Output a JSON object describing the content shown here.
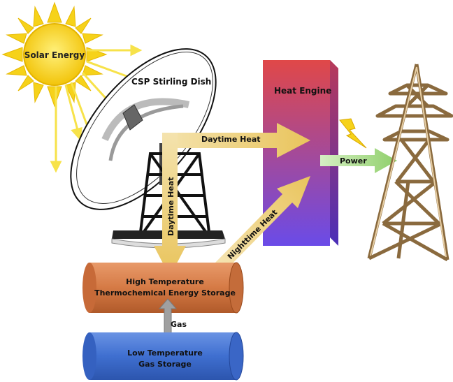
{
  "labels": {
    "solar_energy": "Solar Energy",
    "csp_dish": "CSP Stirling Dish",
    "heat_engine": "Heat Engine",
    "daytime_heat_horizontal": "Daytime Heat",
    "daytime_heat_vertical": "Daytime Heat",
    "nighttime_heat": "Nighttime Heat",
    "power": "Power",
    "high_temp_line1": "High Temperature",
    "high_temp_line2": "Thermochemical Energy Storage",
    "gas": "Gas",
    "low_temp_line1": "Low Temperature",
    "low_temp_line2": "Gas Storage"
  },
  "colors": {
    "sun": "#f6d21a",
    "sun_ray": "#f7e24a",
    "heat_arrow": "#efd27e",
    "heat_engine_top": "#e04848",
    "heat_engine_bottom": "#6a4be8",
    "power_arrow": "#a8d98a",
    "high_temp_storage": "#d57a45",
    "low_temp_storage": "#3f6fd0",
    "gas_arrow": "#a0a0a0",
    "tower": "#c9a97a"
  }
}
